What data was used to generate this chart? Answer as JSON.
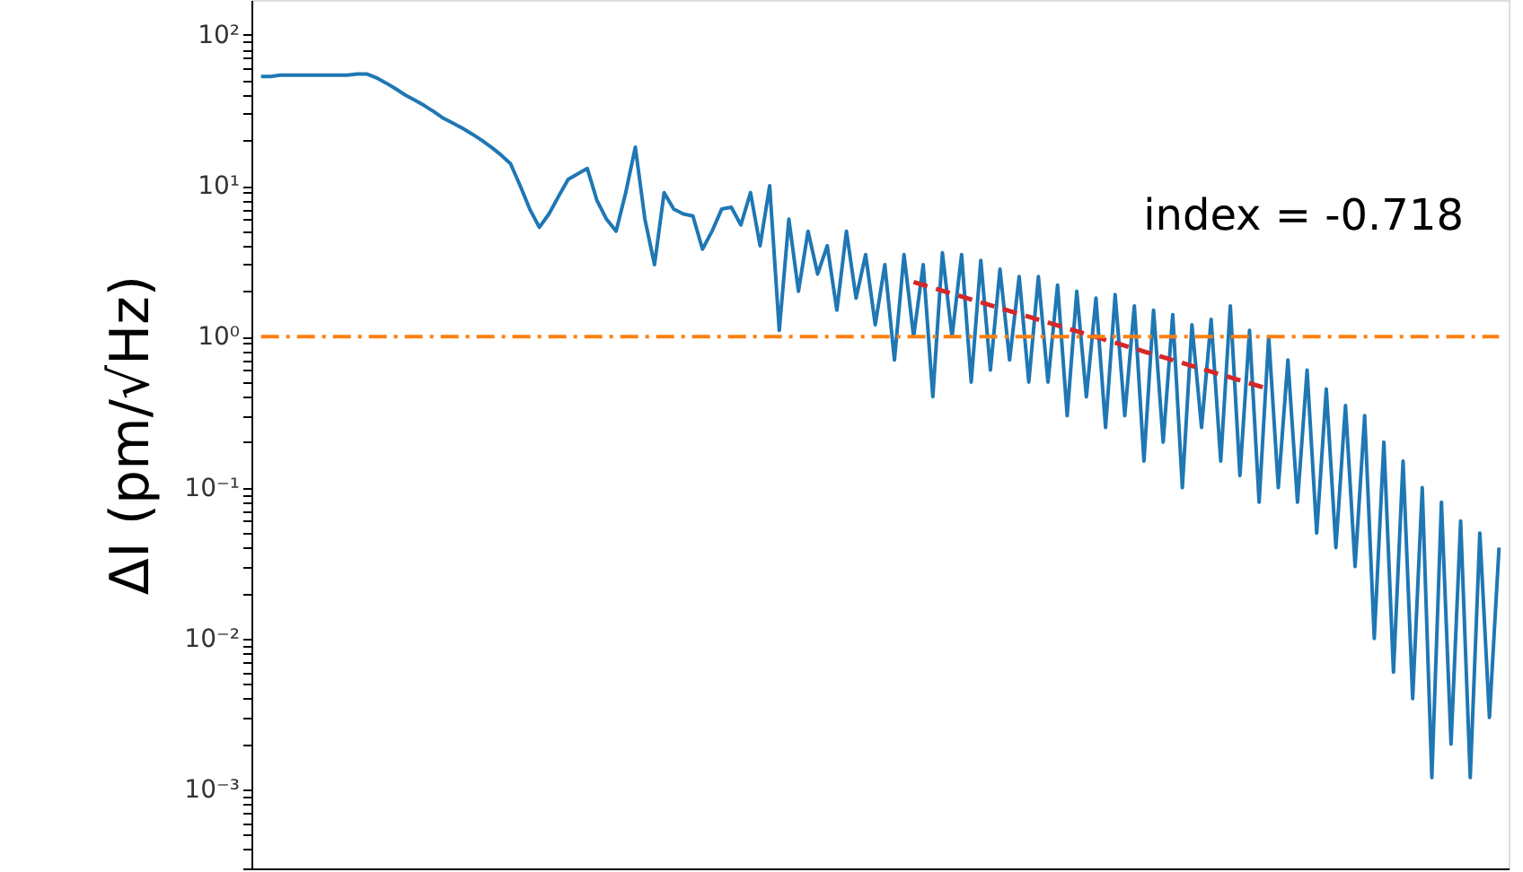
{
  "chart_data": {
    "type": "line",
    "ylabel": "ΔI (pm/√Hz)",
    "log": "y",
    "grid": false,
    "tick_labels": "y",
    "annotations": [
      "index = -0.718"
    ],
    "categories": [
      null,
      null,
      null,
      null,
      null,
      null,
      null,
      null,
      null,
      null,
      null,
      null,
      null,
      null,
      null,
      null,
      null,
      null,
      null,
      null,
      null,
      null,
      null,
      null,
      null,
      null,
      null,
      null,
      null,
      null,
      null,
      null,
      null,
      null,
      null,
      null,
      null,
      null,
      null,
      null,
      null,
      null,
      null,
      null,
      null,
      null,
      null,
      null,
      null,
      null,
      null,
      null,
      null,
      null,
      null,
      null,
      null,
      null,
      null,
      null,
      null,
      null,
      null,
      null,
      null,
      null,
      null,
      null,
      null,
      null,
      null,
      null,
      null,
      null,
      null,
      null,
      null,
      null,
      null,
      null,
      null,
      null,
      null,
      null,
      null,
      null,
      null,
      null,
      null,
      null,
      null,
      null,
      null,
      null,
      null,
      null,
      null,
      null,
      null,
      null,
      null,
      null,
      null,
      null,
      null,
      null,
      null,
      null,
      null,
      null,
      null,
      null,
      null,
      null,
      null,
      null,
      null,
      null,
      null,
      null,
      null,
      null,
      null,
      null,
      null,
      null,
      null,
      null,
      null,
      null
    ],
    "ylim": [
      0.0003,
      170
    ],
    "yticks": [
      {
        "value": 0.001,
        "label": "10⁻³"
      },
      {
        "value": 0.01,
        "label": "10⁻²"
      },
      {
        "value": 0.1,
        "label": "10⁻¹"
      },
      {
        "value": 1,
        "label": "10⁰"
      },
      {
        "value": 10,
        "label": "10¹"
      },
      {
        "value": 100,
        "label": "10²"
      },
      {
        "value": 0.0003,
        "label": null
      },
      {
        "value": 0.0004,
        "label": null
      },
      {
        "value": 0.0005,
        "label": null
      },
      {
        "value": 0.0006,
        "label": null
      },
      {
        "value": 0.0007,
        "label": null
      },
      {
        "value": 0.0008,
        "label": null
      },
      {
        "value": 0.0009,
        "label": null
      },
      {
        "value": 0.002,
        "label": null
      },
      {
        "value": 0.003,
        "label": null
      },
      {
        "value": 0.004,
        "label": null
      },
      {
        "value": 0.005,
        "label": null
      },
      {
        "value": 0.006,
        "label": null
      },
      {
        "value": 0.007,
        "label": null
      },
      {
        "value": 0.008,
        "label": null
      },
      {
        "value": 0.009,
        "label": null
      },
      {
        "value": 0.02,
        "label": null
      },
      {
        "value": 0.03,
        "label": null
      },
      {
        "value": 0.04,
        "label": null
      },
      {
        "value": 0.05,
        "label": null
      },
      {
        "value": 0.06,
        "label": null
      },
      {
        "value": 0.07,
        "label": null
      },
      {
        "value": 0.08,
        "label": null
      },
      {
        "value": 0.09,
        "label": null
      },
      {
        "value": 0.2,
        "label": null
      },
      {
        "value": 0.3,
        "label": null
      },
      {
        "value": 0.4,
        "label": null
      },
      {
        "value": 0.5,
        "label": null
      },
      {
        "value": 0.6,
        "label": null
      },
      {
        "value": 0.7,
        "label": null
      },
      {
        "value": 0.8,
        "label": null
      },
      {
        "value": 0.9,
        "label": null
      },
      {
        "value": 2,
        "label": null
      },
      {
        "value": 3,
        "label": null
      },
      {
        "value": 4,
        "label": null
      },
      {
        "value": 5,
        "label": null
      },
      {
        "value": 6,
        "label": null
      },
      {
        "value": 7,
        "label": null
      },
      {
        "value": 8,
        "label": null
      },
      {
        "value": 9,
        "label": null
      },
      {
        "value": 20,
        "label": null
      },
      {
        "value": 30,
        "label": null
      },
      {
        "value": 40,
        "label": null
      },
      {
        "value": 50,
        "label": null
      },
      {
        "value": 60,
        "label": null
      },
      {
        "value": 70,
        "label": null
      },
      {
        "value": 80,
        "label": null
      },
      {
        "value": 90,
        "label": null
      }
    ],
    "ref_lines": [
      {
        "axis": "y",
        "value": 1,
        "label": null,
        "color": "#ff7f0e",
        "line_style": "dashdot"
      }
    ],
    "series": [
      {
        "color": "#1f77b4",
        "line_style": "solid",
        "values": [
          53,
          53,
          54,
          54,
          54,
          54,
          54,
          54,
          54,
          54,
          55,
          55,
          52,
          48,
          44,
          40,
          37,
          34,
          31,
          28,
          26,
          24,
          22,
          20,
          18,
          16,
          14,
          10,
          7,
          5.3,
          6.5,
          8.5,
          11,
          12,
          13,
          8,
          6,
          5,
          9,
          18,
          6,
          3,
          9,
          7,
          6.5,
          6.3,
          3.8,
          5,
          7,
          7.2,
          5.5,
          9,
          4,
          10,
          1.1,
          6,
          2,
          5,
          2.6,
          4,
          1.5,
          5,
          1.8,
          3.5,
          1.2,
          3,
          0.7,
          3.5,
          1.0,
          3,
          0.4,
          3.6,
          1.0,
          3.5,
          0.5,
          3.2,
          0.6,
          2.8,
          0.7,
          2.5,
          0.5,
          2.5,
          0.5,
          2.2,
          0.3,
          2.0,
          0.4,
          1.8,
          0.25,
          1.9,
          0.3,
          1.6,
          0.15,
          1.5,
          0.2,
          1.4,
          0.1,
          1.2,
          0.25,
          1.3,
          0.15,
          1.6,
          0.12,
          1.1,
          0.08,
          1.0,
          0.1,
          0.7,
          0.08,
          0.6,
          0.05,
          0.45,
          0.04,
          0.35,
          0.03,
          0.3,
          0.01,
          0.2,
          0.006,
          0.15,
          0.004,
          0.1,
          0.0012,
          0.08,
          0.002,
          0.06,
          0.0012,
          0.05,
          0.003,
          0.04
        ]
      },
      {
        "color": "#d62728",
        "line_style": "dashed",
        "values": [
          null,
          null,
          null,
          null,
          null,
          null,
          null,
          null,
          null,
          null,
          null,
          null,
          null,
          null,
          null,
          null,
          null,
          null,
          null,
          null,
          null,
          null,
          null,
          null,
          null,
          null,
          null,
          null,
          null,
          null,
          null,
          null,
          null,
          null,
          null,
          null,
          null,
          null,
          null,
          null,
          null,
          null,
          null,
          null,
          null,
          null,
          null,
          null,
          null,
          null,
          null,
          null,
          null,
          null,
          null,
          null,
          null,
          null,
          null,
          null,
          null,
          null,
          null,
          null,
          null,
          null,
          null,
          null,
          2.3,
          null,
          null,
          null,
          null,
          null,
          null,
          null,
          null,
          null,
          null,
          null,
          null,
          null,
          null,
          null,
          null,
          null,
          null,
          null,
          null,
          null,
          null,
          null,
          null,
          null,
          null,
          null,
          null,
          null,
          null,
          null,
          null,
          null,
          null,
          null,
          null,
          0.45,
          null,
          null,
          null,
          null,
          null,
          null,
          null,
          null,
          null,
          null,
          null,
          null,
          null,
          null,
          null,
          null,
          null,
          null,
          null,
          null,
          null,
          null,
          null,
          null
        ]
      }
    ]
  }
}
